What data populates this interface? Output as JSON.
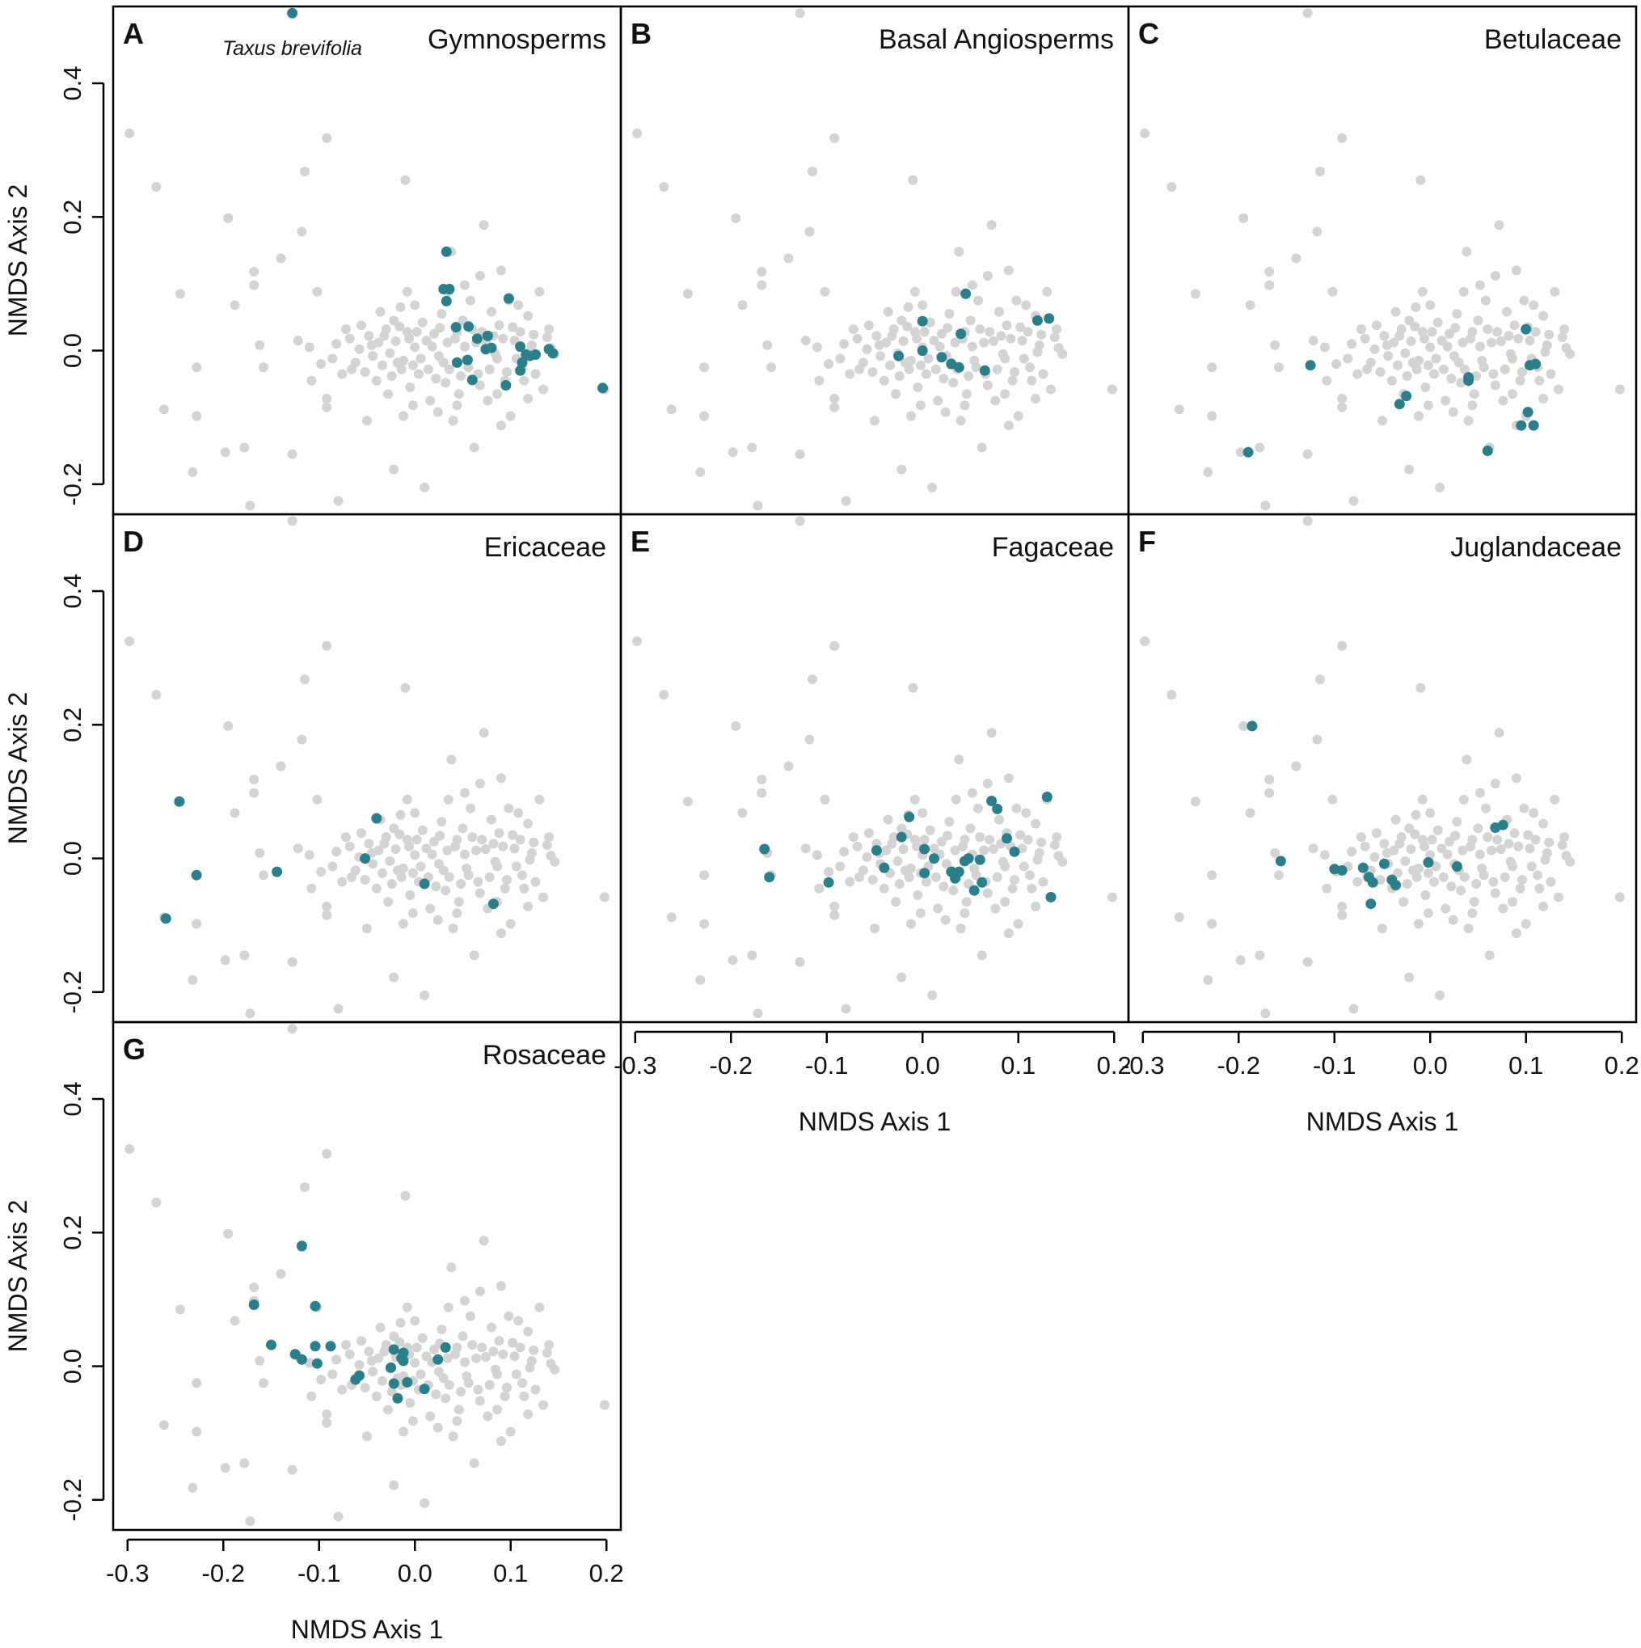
{
  "figure": {
    "x_label": "NMDS Axis 1",
    "y_label": "NMDS Axis 2",
    "x_ticks": [
      "-0.3",
      "-0.2",
      "-0.1",
      "0.0",
      "0.1",
      "0.2"
    ],
    "y_ticks": [
      "-0.2",
      "0.0",
      "0.2",
      "0.4"
    ],
    "colors": {
      "background_points": "#d3d3d3",
      "highlight_points": "#2a7f8a",
      "frame": "#000000"
    },
    "annotation": "Taxus brevifolia"
  },
  "chart_data": {
    "type": "scatter",
    "xlim": [
      -0.315,
      0.215
    ],
    "ylim": [
      -0.245,
      0.515
    ],
    "x_ticks": [
      -0.3,
      -0.2,
      -0.1,
      0.0,
      0.1,
      0.2
    ],
    "y_ticks": [
      -0.2,
      0.0,
      0.2,
      0.4
    ],
    "xlabel": "NMDS Axis 1",
    "ylabel": "NMDS Axis 2",
    "background_series": {
      "name": "all species",
      "color": "#d3d3d3",
      "points": [
        [
          -0.298,
          0.325
        ],
        [
          -0.27,
          0.245
        ],
        [
          -0.245,
          0.085
        ],
        [
          -0.262,
          -0.088
        ],
        [
          -0.228,
          -0.025
        ],
        [
          -0.232,
          -0.182
        ],
        [
          -0.228,
          -0.098
        ],
        [
          -0.195,
          0.198
        ],
        [
          -0.188,
          0.068
        ],
        [
          -0.198,
          -0.152
        ],
        [
          -0.178,
          -0.145
        ],
        [
          -0.172,
          -0.232
        ],
        [
          -0.168,
          0.098
        ],
        [
          -0.168,
          0.118
        ],
        [
          -0.158,
          -0.025
        ],
        [
          -0.162,
          0.008
        ],
        [
          -0.14,
          0.138
        ],
        [
          -0.128,
          -0.155
        ],
        [
          -0.128,
          0.505
        ],
        [
          -0.122,
          0.015
        ],
        [
          -0.115,
          0.268
        ],
        [
          -0.118,
          0.178
        ],
        [
          -0.108,
          -0.045
        ],
        [
          -0.102,
          0.088
        ],
        [
          -0.092,
          0.318
        ],
        [
          -0.092,
          -0.085
        ],
        [
          -0.092,
          -0.072
        ],
        [
          -0.086,
          -0.012
        ],
        [
          -0.08,
          -0.225
        ],
        [
          -0.072,
          0.032
        ],
        [
          -0.068,
          0.018
        ],
        [
          -0.062,
          -0.018
        ],
        [
          -0.056,
          0.038
        ],
        [
          -0.05,
          -0.105
        ],
        [
          -0.045,
          0.008
        ],
        [
          -0.04,
          -0.045
        ],
        [
          -0.036,
          0.058
        ],
        [
          -0.032,
          0.022
        ],
        [
          -0.028,
          -0.065
        ],
        [
          -0.022,
          0.045
        ],
        [
          -0.022,
          -0.178
        ],
        [
          -0.015,
          0.065
        ],
        [
          -0.012,
          -0.015
        ],
        [
          -0.01,
          0.255
        ],
        [
          -0.008,
          0.028
        ],
        [
          -0.005,
          -0.055
        ],
        [
          0.0,
          0.005
        ],
        [
          0.004,
          -0.035
        ],
        [
          0.008,
          0.042
        ],
        [
          0.01,
          -0.205
        ],
        [
          0.012,
          0.015
        ],
        [
          0.016,
          -0.075
        ],
        [
          0.02,
          0.025
        ],
        [
          0.025,
          -0.008
        ],
        [
          0.028,
          0.055
        ],
        [
          0.032,
          -0.048
        ],
        [
          0.035,
          0.088
        ],
        [
          0.038,
          0.148
        ],
        [
          0.04,
          -0.105
        ],
        [
          0.042,
          0.018
        ],
        [
          0.046,
          -0.065
        ],
        [
          0.05,
          0.045
        ],
        [
          0.054,
          -0.015
        ],
        [
          0.058,
          0.075
        ],
        [
          0.062,
          -0.145
        ],
        [
          0.066,
          -0.035
        ],
        [
          0.07,
          0.028
        ],
        [
          0.072,
          0.188
        ],
        [
          0.076,
          -0.075
        ],
        [
          0.08,
          0.058
        ],
        [
          0.084,
          -0.005
        ],
        [
          0.088,
          0.038
        ],
        [
          0.09,
          -0.112
        ],
        [
          0.094,
          -0.045
        ],
        [
          0.098,
          0.075
        ],
        [
          0.1,
          -0.098
        ],
        [
          0.104,
          0.015
        ],
        [
          0.108,
          0.068
        ],
        [
          0.112,
          -0.025
        ],
        [
          0.118,
          0.052
        ],
        [
          0.122,
          0.008
        ],
        [
          0.126,
          -0.035
        ],
        [
          0.13,
          0.088
        ],
        [
          0.134,
          -0.058
        ],
        [
          0.138,
          0.02
        ],
        [
          0.142,
          0.004
        ],
        [
          0.146,
          -0.005
        ],
        [
          0.198,
          -0.058
        ],
        [
          -0.066,
          -0.028
        ],
        [
          -0.058,
          0.002
        ],
        [
          -0.052,
          -0.032
        ],
        [
          -0.048,
          0.022
        ],
        [
          -0.044,
          -0.008
        ],
        [
          -0.038,
          0.012
        ],
        [
          -0.034,
          -0.022
        ],
        [
          -0.03,
          0.032
        ],
        [
          -0.026,
          -0.004
        ],
        [
          -0.024,
          -0.038
        ],
        [
          -0.02,
          0.014
        ],
        [
          -0.018,
          -0.018
        ],
        [
          -0.016,
          0.036
        ],
        [
          -0.014,
          -0.028
        ],
        [
          -0.006,
          0.018
        ],
        [
          -0.002,
          -0.022
        ],
        [
          0.002,
          0.028
        ],
        [
          0.006,
          -0.012
        ],
        [
          0.014,
          -0.028
        ],
        [
          0.018,
          0.006
        ],
        [
          0.022,
          -0.042
        ],
        [
          0.026,
          0.034
        ],
        [
          0.03,
          -0.018
        ],
        [
          0.034,
          0.012
        ],
        [
          0.036,
          -0.028
        ],
        [
          0.044,
          0.028
        ],
        [
          0.048,
          -0.038
        ],
        [
          0.052,
          0.006
        ],
        [
          0.056,
          -0.025
        ],
        [
          0.06,
          0.032
        ],
        [
          0.064,
          0.012
        ],
        [
          0.068,
          -0.052
        ],
        [
          0.074,
          0.014
        ],
        [
          0.078,
          -0.028
        ],
        [
          0.082,
          0.022
        ],
        [
          0.086,
          -0.012
        ],
        [
          0.092,
          0.018
        ],
        [
          0.096,
          -0.032
        ],
        [
          0.102,
          0.035
        ],
        [
          0.106,
          -0.012
        ],
        [
          0.11,
          0.028
        ],
        [
          0.114,
          -0.045
        ],
        [
          0.12,
          -0.002
        ],
        [
          0.124,
          0.024
        ],
        [
          -0.098,
          -0.02
        ],
        [
          -0.11,
          0.005
        ],
        [
          -0.082,
          0.01
        ],
        [
          -0.076,
          -0.035
        ],
        [
          -0.002,
          -0.082
        ],
        [
          0.024,
          -0.092
        ],
        [
          0.044,
          -0.082
        ],
        [
          0.086,
          -0.065
        ],
        [
          -0.012,
          -0.098
        ],
        [
          0.068,
          0.112
        ],
        [
          0.052,
          0.098
        ],
        [
          0.118,
          -0.072
        ],
        [
          0.0,
          0.068
        ],
        [
          -0.008,
          0.088
        ],
        [
          0.14,
          0.032
        ],
        [
          0.09,
          0.12
        ]
      ]
    },
    "panels": [
      {
        "letter": "A",
        "title": "Gymnosperms",
        "annotation": "Taxus brevifolia",
        "highlight_points": [
          [
            -0.128,
            0.505
          ],
          [
            0.033,
            0.148
          ],
          [
            0.03,
            0.092
          ],
          [
            0.036,
            0.092
          ],
          [
            0.033,
            0.074
          ],
          [
            0.043,
            0.035
          ],
          [
            0.056,
            0.036
          ],
          [
            0.065,
            0.018
          ],
          [
            0.076,
            0.022
          ],
          [
            0.098,
            0.078
          ],
          [
            0.074,
            0.002
          ],
          [
            0.08,
            0.004
          ],
          [
            0.044,
            -0.018
          ],
          [
            0.055,
            -0.014
          ],
          [
            0.06,
            -0.044
          ],
          [
            0.095,
            -0.052
          ],
          [
            0.11,
            0.006
          ],
          [
            0.112,
            -0.018
          ],
          [
            0.116,
            -0.006
          ],
          [
            0.12,
            -0.008
          ],
          [
            0.11,
            -0.03
          ],
          [
            0.126,
            -0.006
          ],
          [
            0.14,
            0.002
          ],
          [
            0.144,
            -0.004
          ],
          [
            0.196,
            -0.056
          ]
        ]
      },
      {
        "letter": "B",
        "title": "Basal Angiosperms",
        "highlight_points": [
          [
            0.045,
            0.085
          ],
          [
            0.0,
            0.044
          ],
          [
            -0.025,
            -0.008
          ],
          [
            0.0,
            0.0
          ],
          [
            0.02,
            -0.01
          ],
          [
            0.03,
            -0.02
          ],
          [
            0.04,
            0.025
          ],
          [
            0.038,
            -0.025
          ],
          [
            0.065,
            -0.03
          ],
          [
            0.12,
            0.045
          ],
          [
            0.132,
            0.048
          ]
        ]
      },
      {
        "letter": "C",
        "title": "Betulaceae",
        "highlight_points": [
          [
            -0.19,
            -0.152
          ],
          [
            -0.125,
            -0.022
          ],
          [
            -0.025,
            -0.068
          ],
          [
            -0.032,
            -0.08
          ],
          [
            0.04,
            -0.045
          ],
          [
            0.04,
            -0.04
          ],
          [
            0.1,
            0.032
          ],
          [
            0.104,
            -0.022
          ],
          [
            0.11,
            -0.02
          ],
          [
            0.102,
            -0.092
          ],
          [
            0.095,
            -0.112
          ],
          [
            0.108,
            -0.112
          ],
          [
            0.06,
            -0.15
          ]
        ]
      },
      {
        "letter": "D",
        "title": "Ericaceae",
        "highlight_points": [
          [
            -0.246,
            0.085
          ],
          [
            -0.228,
            -0.025
          ],
          [
            -0.26,
            -0.09
          ],
          [
            -0.144,
            -0.02
          ],
          [
            -0.052,
            0.0
          ],
          [
            -0.04,
            0.06
          ],
          [
            0.01,
            -0.038
          ],
          [
            0.082,
            -0.068
          ]
        ]
      },
      {
        "letter": "E",
        "title": "Fagaceae",
        "highlight_points": [
          [
            -0.165,
            0.014
          ],
          [
            -0.16,
            -0.028
          ],
          [
            -0.098,
            -0.036
          ],
          [
            -0.048,
            0.012
          ],
          [
            -0.04,
            -0.014
          ],
          [
            -0.022,
            0.032
          ],
          [
            -0.014,
            0.062
          ],
          [
            0.002,
            0.014
          ],
          [
            0.002,
            -0.022
          ],
          [
            0.012,
            0.0
          ],
          [
            0.03,
            -0.02
          ],
          [
            0.034,
            -0.03
          ],
          [
            0.038,
            -0.02
          ],
          [
            0.044,
            -0.004
          ],
          [
            0.048,
            0.0
          ],
          [
            0.054,
            -0.048
          ],
          [
            0.06,
            -0.002
          ],
          [
            0.062,
            -0.036
          ],
          [
            0.072,
            0.086
          ],
          [
            0.078,
            0.074
          ],
          [
            0.088,
            0.03
          ],
          [
            0.096,
            0.01
          ],
          [
            0.13,
            0.092
          ],
          [
            0.134,
            -0.058
          ]
        ]
      },
      {
        "letter": "F",
        "title": "Juglandaceae",
        "highlight_points": [
          [
            -0.186,
            0.198
          ],
          [
            -0.156,
            -0.004
          ],
          [
            -0.1,
            -0.016
          ],
          [
            -0.092,
            -0.018
          ],
          [
            -0.07,
            -0.014
          ],
          [
            -0.064,
            -0.028
          ],
          [
            -0.06,
            -0.036
          ],
          [
            -0.048,
            -0.008
          ],
          [
            -0.04,
            -0.032
          ],
          [
            -0.036,
            -0.04
          ],
          [
            -0.062,
            -0.068
          ],
          [
            -0.002,
            -0.006
          ],
          [
            0.028,
            -0.012
          ],
          [
            0.068,
            0.046
          ],
          [
            0.076,
            0.05
          ]
        ]
      },
      {
        "letter": "G",
        "title": "Rosaceae",
        "highlight_points": [
          [
            -0.168,
            0.092
          ],
          [
            -0.15,
            0.032
          ],
          [
            -0.125,
            0.018
          ],
          [
            -0.118,
            0.01
          ],
          [
            -0.118,
            0.18
          ],
          [
            -0.104,
            0.03
          ],
          [
            -0.104,
            0.09
          ],
          [
            -0.102,
            0.004
          ],
          [
            -0.088,
            0.03
          ],
          [
            -0.062,
            -0.02
          ],
          [
            -0.058,
            -0.014
          ],
          [
            -0.025,
            -0.002
          ],
          [
            -0.022,
            0.025
          ],
          [
            -0.014,
            0.012
          ],
          [
            -0.012,
            0.02
          ],
          [
            -0.012,
            0.008
          ],
          [
            -0.018,
            -0.048
          ],
          [
            -0.022,
            -0.026
          ],
          [
            -0.008,
            -0.024
          ],
          [
            0.01,
            -0.034
          ],
          [
            0.024,
            0.01
          ],
          [
            0.032,
            0.028
          ]
        ]
      }
    ]
  }
}
